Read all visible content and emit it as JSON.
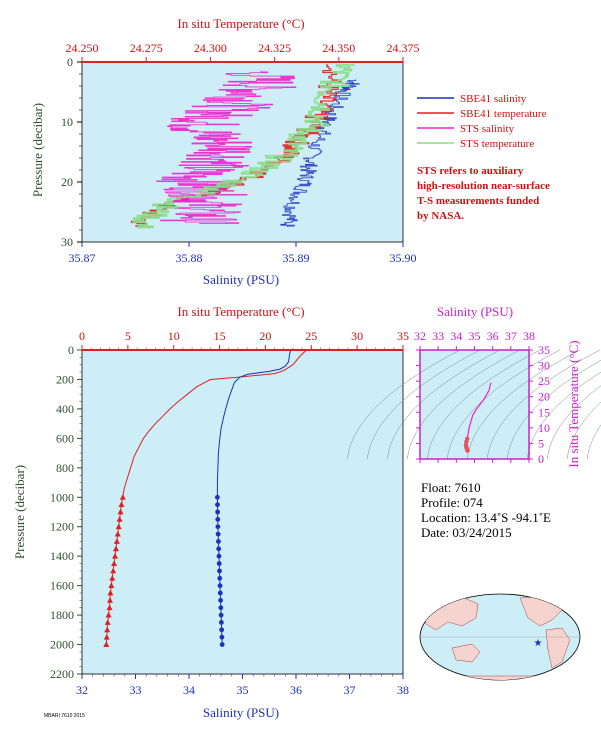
{
  "colors": {
    "panel_bg": "#cdeef7",
    "temperature": "#e02020",
    "salinity": "#1f2fbf",
    "sts_salinity": "#ee22cc",
    "sts_temperature": "#88dd88",
    "ts_axis": "#cc22cc",
    "pressure_axis": "#2f4f2f"
  },
  "chart_data": [
    {
      "type": "line",
      "panel": "near-surface",
      "x_top": {
        "label": "In situ Temperature (°C)",
        "range": [
          24.25,
          24.375
        ],
        "ticks": [
          "24.250",
          "24.275",
          "24.300",
          "24.325",
          "24.350",
          "24.375"
        ]
      },
      "x_bottom": {
        "label": "Salinity (PSU)",
        "range": [
          35.87,
          35.9
        ],
        "ticks": [
          "35.87",
          "35.88",
          "35.89",
          "35.90"
        ]
      },
      "y": {
        "label": "Pressure (decibar)",
        "range": [
          0,
          30
        ],
        "inverted": true,
        "ticks": [
          "0",
          "10",
          "20",
          "30"
        ]
      },
      "legend": {
        "placement": "right",
        "entries": [
          {
            "name": "SBE41 salinity",
            "color": "#1f2fbf"
          },
          {
            "name": "SBE41 temperature",
            "color": "#e02020"
          },
          {
            "name": "STS salinity",
            "color": "#ee22cc"
          },
          {
            "name": "STS temperature",
            "color": "#88dd88"
          }
        ]
      },
      "note": [
        "STS refers to auxiliary",
        "high-resolution near-surface",
        "T-S measurements funded",
        "by NASA."
      ],
      "series": [
        {
          "name": "SBE41 salinity",
          "axis": "salinity",
          "points": [
            [
              35.8955,
              3.0
            ],
            [
              35.8952,
              4.0
            ],
            [
              35.8945,
              5.0
            ],
            [
              35.8938,
              7.0
            ],
            [
              35.8932,
              9.0
            ],
            [
              35.8928,
              10.5
            ],
            [
              35.8925,
              12.0
            ],
            [
              35.8918,
              14.0
            ],
            [
              35.8915,
              16.0
            ],
            [
              35.8912,
              17.5
            ],
            [
              35.891,
              19.0
            ],
            [
              35.8908,
              20.5
            ],
            [
              35.8903,
              22.0
            ],
            [
              35.8897,
              24.0
            ],
            [
              35.8895,
              26.0
            ],
            [
              35.8892,
              27.5
            ]
          ]
        },
        {
          "name": "SBE41 temperature",
          "axis": "temperature",
          "points": [
            [
              24.35,
              0.5
            ],
            [
              24.347,
              3.0
            ],
            [
              24.345,
              5.5
            ],
            [
              24.343,
              7.5
            ],
            [
              24.341,
              9.5
            ],
            [
              24.339,
              11.0
            ],
            [
              24.336,
              12.5
            ],
            [
              24.333,
              14.0
            ],
            [
              24.33,
              15.5
            ],
            [
              24.326,
              17.0
            ],
            [
              24.32,
              18.5
            ],
            [
              24.313,
              20.0
            ],
            [
              24.306,
              21.0
            ],
            [
              24.298,
              22.0
            ],
            [
              24.288,
              23.0
            ],
            [
              24.28,
              24.5
            ],
            [
              24.275,
              26.0
            ],
            [
              24.271,
              27.5
            ]
          ]
        },
        {
          "name": "STS salinity",
          "axis": "salinity",
          "points": [
            [
              35.8865,
              1.5
            ],
            [
              35.8868,
              3.5
            ],
            [
              35.886,
              5.0
            ],
            [
              35.885,
              6.5
            ],
            [
              35.8835,
              8.0
            ],
            [
              35.882,
              9.5
            ],
            [
              35.881,
              11.0
            ],
            [
              35.8822,
              12.5
            ],
            [
              35.884,
              14.5
            ],
            [
              35.8832,
              16.5
            ],
            [
              35.8812,
              18.0
            ],
            [
              35.8805,
              19.5
            ],
            [
              35.8812,
              21.0
            ],
            [
              35.8818,
              22.5
            ],
            [
              35.8815,
              24.0
            ],
            [
              35.8812,
              25.5
            ],
            [
              35.881,
              27.0
            ]
          ]
        },
        {
          "name": "STS temperature",
          "axis": "temperature",
          "points": [
            [
              24.353,
              0.5
            ],
            [
              24.35,
              2.0
            ],
            [
              24.348,
              4.0
            ],
            [
              24.345,
              6.0
            ],
            [
              24.344,
              8.0
            ],
            [
              24.342,
              10.0
            ],
            [
              24.338,
              11.5
            ],
            [
              24.334,
              13.0
            ],
            [
              24.331,
              14.5
            ],
            [
              24.327,
              16.0
            ],
            [
              24.322,
              17.5
            ],
            [
              24.315,
              19.0
            ],
            [
              24.307,
              20.5
            ],
            [
              24.298,
              21.8
            ],
            [
              24.288,
              23.0
            ],
            [
              24.281,
              24.5
            ],
            [
              24.276,
              26.0
            ],
            [
              24.272,
              27.8
            ]
          ]
        }
      ]
    },
    {
      "type": "line",
      "panel": "full-profile",
      "x_top": {
        "label": "In situ Temperature (°C)",
        "range": [
          0,
          35
        ],
        "ticks": [
          "0",
          "5",
          "10",
          "15",
          "20",
          "25",
          "30",
          "35"
        ]
      },
      "x_bottom": {
        "label": "Salinity (PSU)",
        "range": [
          32,
          38
        ],
        "ticks": [
          "32",
          "33",
          "34",
          "35",
          "36",
          "37",
          "38"
        ]
      },
      "y": {
        "label": "Pressure (decibar)",
        "range": [
          0,
          2200
        ],
        "inverted": true,
        "ticks": [
          "0",
          "200",
          "400",
          "600",
          "800",
          "1000",
          "1200",
          "1400",
          "1600",
          "1800",
          "2000",
          "2200"
        ]
      },
      "series": [
        {
          "name": "Temperature",
          "axis": "temperature",
          "points": [
            [
              24.5,
              0
            ],
            [
              24.3,
              10
            ],
            [
              23.8,
              40
            ],
            [
              23.0,
              100
            ],
            [
              22.0,
              140
            ],
            [
              21.0,
              160
            ],
            [
              19.5,
              170
            ],
            [
              17.0,
              185
            ],
            [
              14.0,
              200
            ],
            [
              12.5,
              250
            ],
            [
              11.5,
              300
            ],
            [
              10.5,
              350
            ],
            [
              9.6,
              400
            ],
            [
              8.8,
              450
            ],
            [
              8.0,
              500
            ],
            [
              7.3,
              550
            ],
            [
              6.7,
              600
            ],
            [
              6.2,
              660
            ],
            [
              5.7,
              720
            ],
            [
              5.3,
              800
            ],
            [
              4.9,
              880
            ],
            [
              4.6,
              940
            ],
            [
              4.45,
              1000
            ],
            [
              4.3,
              1050
            ],
            [
              4.2,
              1100
            ],
            [
              4.1,
              1150
            ],
            [
              4.0,
              1200
            ],
            [
              3.9,
              1250
            ],
            [
              3.8,
              1300
            ],
            [
              3.7,
              1350
            ],
            [
              3.6,
              1400
            ],
            [
              3.5,
              1450
            ],
            [
              3.4,
              1500
            ],
            [
              3.3,
              1550
            ],
            [
              3.2,
              1600
            ],
            [
              3.1,
              1650
            ],
            [
              3.05,
              1700
            ],
            [
              3.0,
              1750
            ],
            [
              2.9,
              1800
            ],
            [
              2.8,
              1850
            ],
            [
              2.75,
              1900
            ],
            [
              2.7,
              1950
            ],
            [
              2.65,
              2000
            ]
          ]
        },
        {
          "name": "Salinity",
          "axis": "salinity",
          "points": [
            [
              35.9,
              0
            ],
            [
              35.88,
              30
            ],
            [
              35.86,
              80
            ],
            [
              35.8,
              110
            ],
            [
              35.7,
              130
            ],
            [
              35.5,
              145
            ],
            [
              35.3,
              155
            ],
            [
              35.1,
              165
            ],
            [
              34.95,
              185
            ],
            [
              34.85,
              220
            ],
            [
              34.8,
              270
            ],
            [
              34.75,
              320
            ],
            [
              34.7,
              380
            ],
            [
              34.65,
              450
            ],
            [
              34.6,
              530
            ],
            [
              34.57,
              620
            ],
            [
              34.55,
              700
            ],
            [
              34.54,
              800
            ],
            [
              34.53,
              900
            ],
            [
              34.53,
              1000
            ],
            [
              34.535,
              1100
            ],
            [
              34.54,
              1200
            ],
            [
              34.55,
              1300
            ],
            [
              34.56,
              1400
            ],
            [
              34.57,
              1500
            ],
            [
              34.58,
              1600
            ],
            [
              34.59,
              1700
            ],
            [
              34.6,
              1800
            ],
            [
              34.61,
              1900
            ],
            [
              34.62,
              2000
            ]
          ]
        }
      ],
      "markers": {
        "pressures": [
          1000,
          1050,
          1100,
          1150,
          1200,
          1250,
          1300,
          1350,
          1400,
          1450,
          1500,
          1550,
          1600,
          1650,
          1700,
          1750,
          1800,
          1850,
          1900,
          1950,
          2000
        ]
      }
    },
    {
      "type": "scatter",
      "panel": "ts-diagram",
      "x": {
        "label": "Salinity (PSU)",
        "range": [
          32,
          38
        ],
        "ticks": [
          "32",
          "33",
          "34",
          "35",
          "36",
          "37",
          "38"
        ]
      },
      "y": {
        "label": "In situ Temperature (°C)",
        "range": [
          0,
          35
        ],
        "ticks": [
          "0",
          "5",
          "10",
          "15",
          "20",
          "25",
          "30",
          "35"
        ]
      },
      "series": [
        {
          "name": "T-S",
          "points": [
            [
              35.9,
              24.5
            ],
            [
              35.8,
              22
            ],
            [
              35.5,
              19
            ],
            [
              35.1,
              16
            ],
            [
              34.9,
              14
            ],
            [
              34.8,
              12
            ],
            [
              34.7,
              10
            ],
            [
              34.65,
              8
            ],
            [
              34.6,
              6.5
            ],
            [
              34.55,
              5.5
            ],
            [
              34.53,
              4.5
            ],
            [
              34.55,
              3.8
            ],
            [
              34.58,
              3.2
            ],
            [
              34.62,
              2.7
            ]
          ]
        }
      ]
    }
  ],
  "float_info": {
    "float": "Float:  7610",
    "profile": "Profile:  074",
    "location": "Location:  13.4˚S  -94.1˚E",
    "date": "Date:  03/24/2015"
  },
  "map": {
    "float_lat": -13.4,
    "float_lon": -94.1
  },
  "footer": "MBARI 7610 2015"
}
